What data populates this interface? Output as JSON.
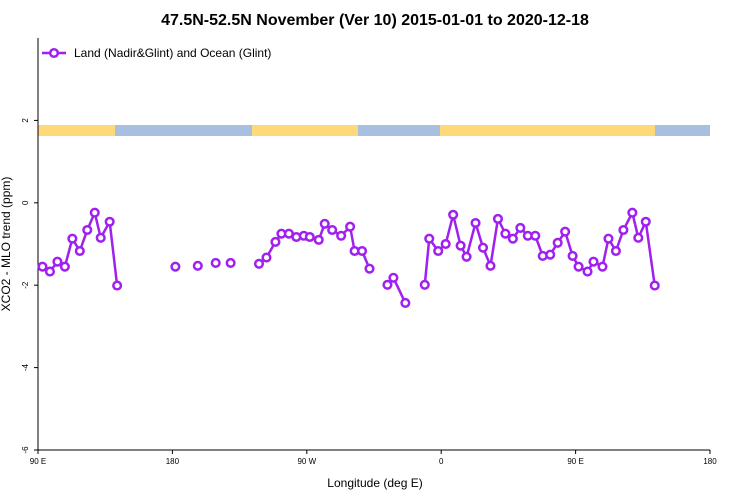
{
  "chart_data": {
    "type": "line",
    "title": "47.5N-52.5N November (Ver 10)   2015-01-01 to 2020-12-18",
    "xlabel": "Longitude (deg E)",
    "ylabel": "XCO2 - MLO trend (ppm)",
    "x": [
      93,
      98,
      103,
      108,
      113,
      118,
      123,
      128,
      132,
      138,
      143,
      160,
      182,
      190,
      197,
      203,
      209,
      213,
      219,
      228,
      238,
      243,
      249,
      253,
      258,
      263,
      268,
      272,
      278,
      282,
      287,
      293,
      299,
      302,
      307,
      312,
      318,
      324,
      328,
      336,
      342,
      349,
      352,
      358,
      363,
      368,
      373,
      377,
      383,
      388,
      393,
      398,
      403,
      408,
      413,
      418,
      423,
      428,
      433,
      438,
      443,
      448,
      452,
      458,
      462,
      468,
      472,
      477,
      482,
      488,
      492,
      497,
      503
    ],
    "series": [
      {
        "name": "Land (Nadir&Glint) and Ocean (Glint)",
        "color": "#a020f0",
        "values": [
          -1.55,
          -1.67,
          -1.43,
          -1.55,
          -0.87,
          -1.17,
          -0.66,
          -0.24,
          -0.85,
          -0.46,
          -2.01,
          null,
          -1.55,
          null,
          -1.53,
          null,
          -1.46,
          null,
          -1.46,
          null,
          -1.48,
          -1.33,
          -0.95,
          -0.75,
          -0.75,
          -0.83,
          -0.8,
          -0.83,
          -0.9,
          -0.51,
          -0.66,
          -0.8,
          -0.58,
          -1.17,
          -1.17,
          -1.6,
          null,
          -1.99,
          -1.82,
          -2.43,
          null,
          -1.99,
          -0.87,
          -1.17,
          -1.0,
          -0.29,
          -1.04,
          -1.31,
          -0.49,
          -1.09,
          -1.53,
          -0.39,
          -0.75,
          -0.87,
          -0.61,
          -0.8,
          -0.8,
          -1.29,
          -1.26,
          -0.97,
          -0.7,
          -1.29,
          -1.55,
          -1.67,
          -1.43,
          -1.55,
          -0.87,
          -1.17,
          -0.66,
          -0.24,
          -0.85,
          -0.46,
          -2.01
        ]
      }
    ],
    "xlim": [
      90,
      540
    ],
    "xticks": [
      {
        "value": 90,
        "label": "90 E"
      },
      180,
      {
        "value": 270,
        "label": "90 W"
      },
      {
        "value": 360,
        "label": "0"
      },
      {
        "value": 450,
        "label": "90 E"
      },
      {
        "value": 540,
        "label": "180"
      }
    ],
    "ylim": [
      -6,
      4
    ],
    "yticks": [
      -6,
      -4,
      -2,
      0,
      2
    ],
    "legend": "top-left"
  }
}
